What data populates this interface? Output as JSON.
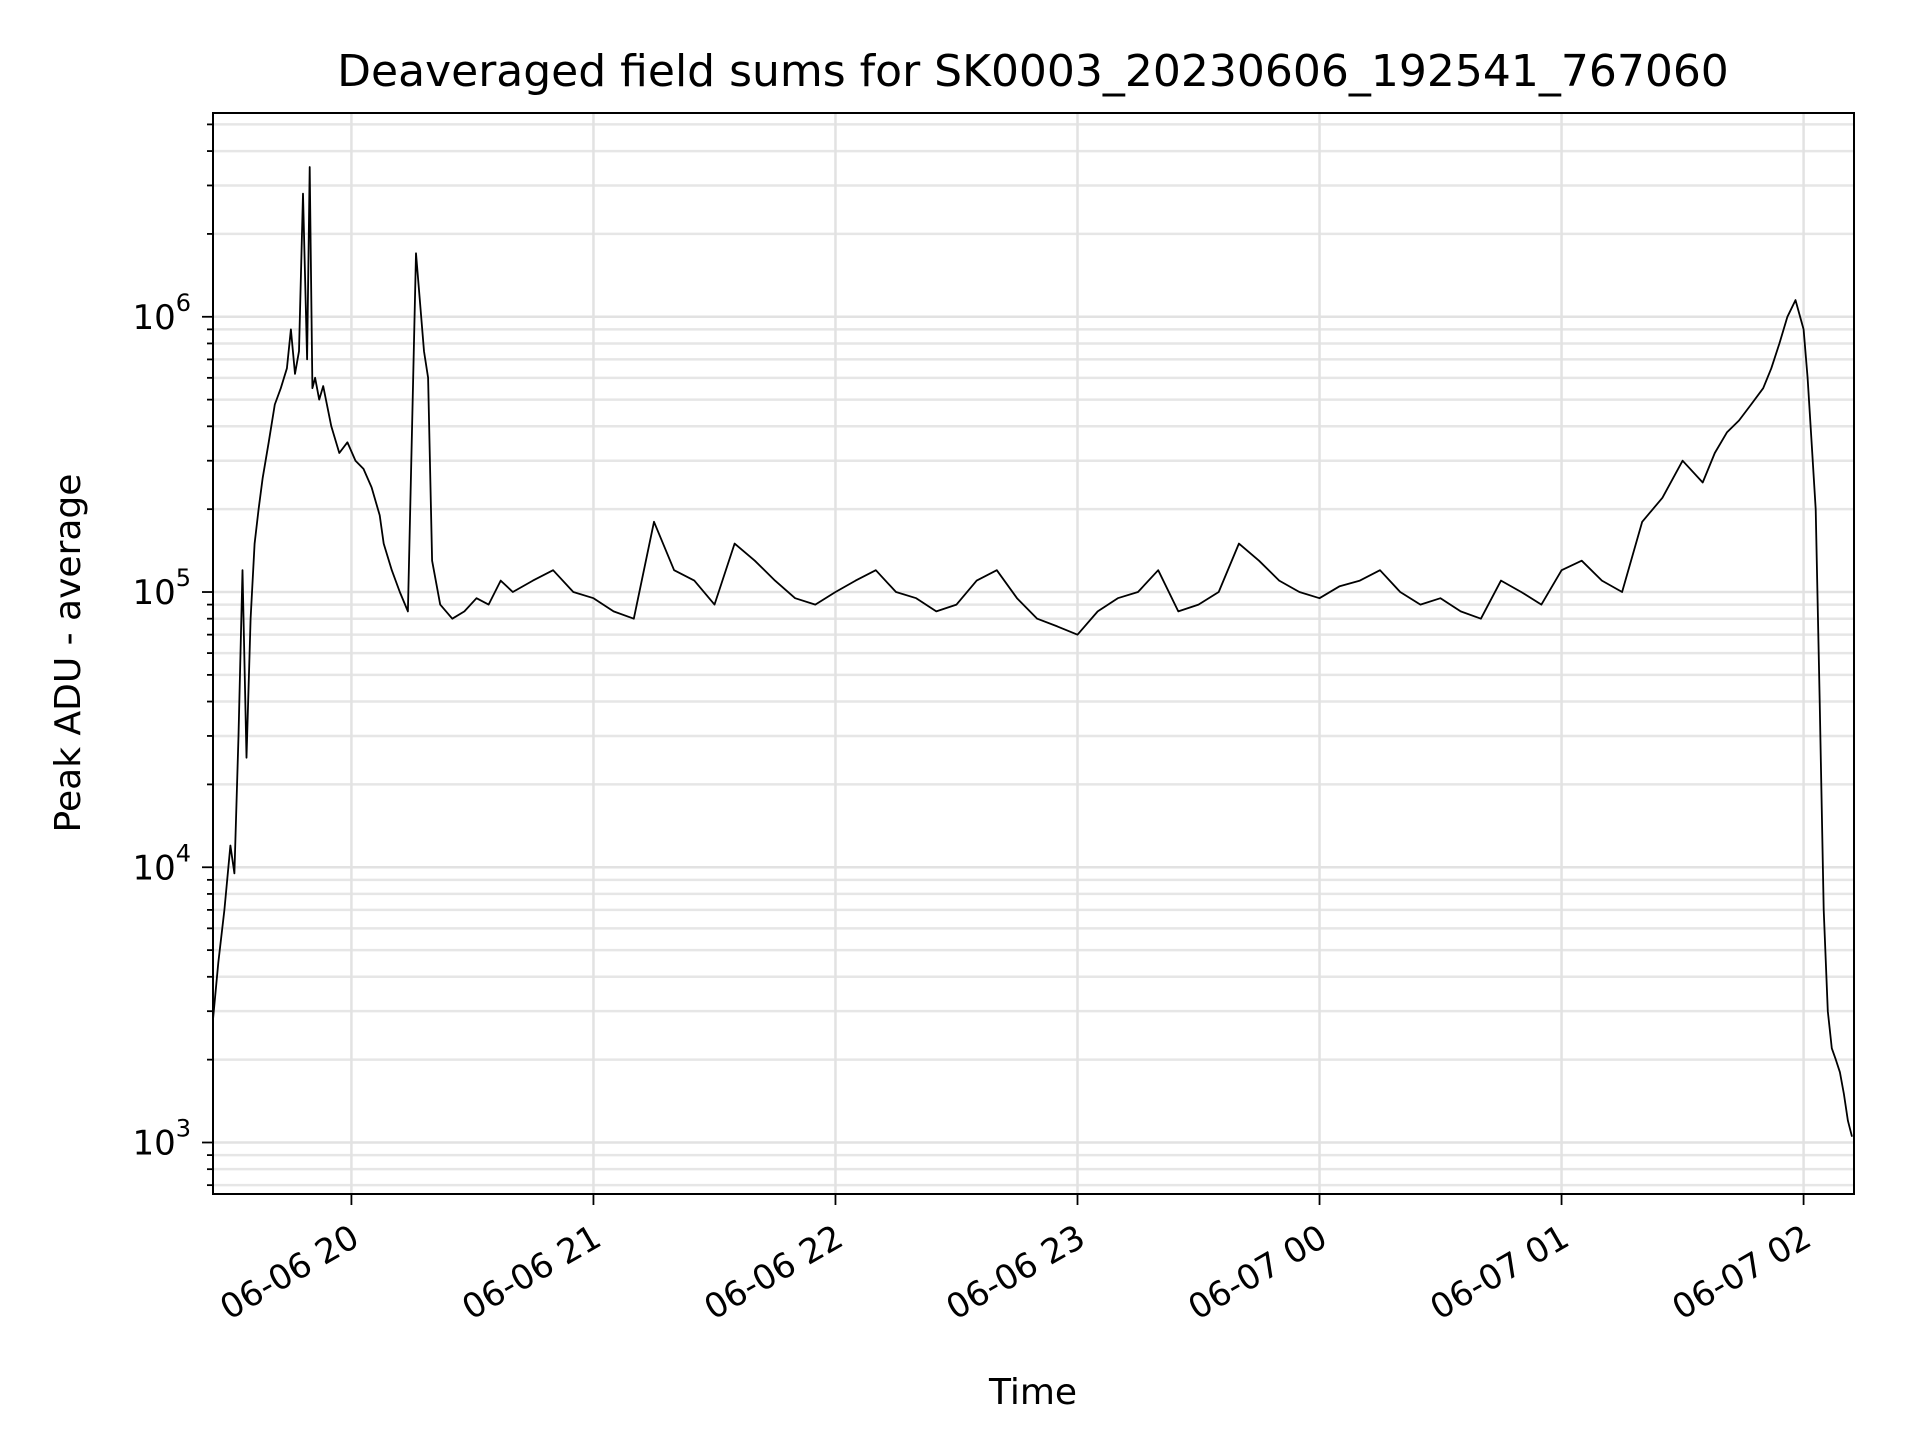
{
  "chart_data": {
    "type": "line",
    "title": "Deaveraged field sums for SK0003_20230606_192541_767060",
    "xlabel": "Time",
    "ylabel": "Peak ADU - average",
    "yscale": "log",
    "grid": true,
    "line_color": "#000000",
    "xlim": [
      "2023-06-06 19:25:41",
      "2023-06-07 02:12:30"
    ],
    "ylim": [
      650,
      5500000
    ],
    "x_ticks": [
      {
        "t": "2023-06-06 20:00",
        "label": "06-06 20"
      },
      {
        "t": "2023-06-06 21:00",
        "label": "06-06 21"
      },
      {
        "t": "2023-06-06 22:00",
        "label": "06-06 22"
      },
      {
        "t": "2023-06-06 23:00",
        "label": "06-06 23"
      },
      {
        "t": "2023-06-07 00:00",
        "label": "06-07 00"
      },
      {
        "t": "2023-06-07 01:00",
        "label": "06-07 01"
      },
      {
        "t": "2023-06-07 02:00",
        "label": "06-07 02"
      }
    ],
    "y_ticks": [
      {
        "value": 1000,
        "base": "10",
        "exp": "3"
      },
      {
        "value": 10000,
        "base": "10",
        "exp": "4"
      },
      {
        "value": 100000,
        "base": "10",
        "exp": "5"
      },
      {
        "value": 1000000,
        "base": "10",
        "exp": "6"
      }
    ],
    "series": [
      {
        "x": [
          "2023-06-06 19:25:41",
          "2023-06-06 19:27:00",
          "2023-06-06 19:28:30",
          "2023-06-06 19:30:00",
          "2023-06-06 19:31:00",
          "2023-06-06 19:32:00",
          "2023-06-06 19:33:00",
          "2023-06-06 19:34:00",
          "2023-06-06 19:35:00",
          "2023-06-06 19:36:00",
          "2023-06-06 19:37:00",
          "2023-06-06 19:38:00",
          "2023-06-06 19:39:30",
          "2023-06-06 19:41:00",
          "2023-06-06 19:42:30",
          "2023-06-06 19:44:00",
          "2023-06-06 19:45:00",
          "2023-06-06 19:46:00",
          "2023-06-06 19:47:00",
          "2023-06-06 19:48:00",
          "2023-06-06 19:49:00",
          "2023-06-06 19:49:40",
          "2023-06-06 19:50:20",
          "2023-06-06 19:51:00",
          "2023-06-06 19:52:00",
          "2023-06-06 19:53:00",
          "2023-06-06 19:55:00",
          "2023-06-06 19:57:00",
          "2023-06-06 19:59:00",
          "2023-06-06 20:01:00",
          "2023-06-06 20:03:00",
          "2023-06-06 20:05:00",
          "2023-06-06 20:07:00",
          "2023-06-06 20:08:00",
          "2023-06-06 20:10:00",
          "2023-06-06 20:12:00",
          "2023-06-06 20:14:00",
          "2023-06-06 20:16:00",
          "2023-06-06 20:18:00",
          "2023-06-06 20:19:00",
          "2023-06-06 20:20:00",
          "2023-06-06 20:22:00",
          "2023-06-06 20:25:00",
          "2023-06-06 20:28:00",
          "2023-06-06 20:31:00",
          "2023-06-06 20:34:00",
          "2023-06-06 20:37:00",
          "2023-06-06 20:40:00",
          "2023-06-06 20:45:00",
          "2023-06-06 20:50:00",
          "2023-06-06 20:55:00",
          "2023-06-06 21:00:00",
          "2023-06-06 21:05:00",
          "2023-06-06 21:10:00",
          "2023-06-06 21:15:00",
          "2023-06-06 21:20:00",
          "2023-06-06 21:25:00",
          "2023-06-06 21:30:00",
          "2023-06-06 21:35:00",
          "2023-06-06 21:40:00",
          "2023-06-06 21:45:00",
          "2023-06-06 21:50:00",
          "2023-06-06 21:55:00",
          "2023-06-06 22:00:00",
          "2023-06-06 22:05:00",
          "2023-06-06 22:10:00",
          "2023-06-06 22:15:00",
          "2023-06-06 22:20:00",
          "2023-06-06 22:25:00",
          "2023-06-06 22:30:00",
          "2023-06-06 22:35:00",
          "2023-06-06 22:40:00",
          "2023-06-06 22:45:00",
          "2023-06-06 22:50:00",
          "2023-06-06 22:55:00",
          "2023-06-06 23:00:00",
          "2023-06-06 23:05:00",
          "2023-06-06 23:10:00",
          "2023-06-06 23:15:00",
          "2023-06-06 23:20:00",
          "2023-06-06 23:25:00",
          "2023-06-06 23:30:00",
          "2023-06-06 23:35:00",
          "2023-06-06 23:40:00",
          "2023-06-06 23:45:00",
          "2023-06-06 23:50:00",
          "2023-06-06 23:55:00",
          "2023-06-07 00:00:00",
          "2023-06-07 00:05:00",
          "2023-06-07 00:10:00",
          "2023-06-07 00:15:00",
          "2023-06-07 00:20:00",
          "2023-06-07 00:25:00",
          "2023-06-07 00:30:00",
          "2023-06-07 00:35:00",
          "2023-06-07 00:40:00",
          "2023-06-07 00:45:00",
          "2023-06-07 00:50:00",
          "2023-06-07 00:55:00",
          "2023-06-07 01:00:00",
          "2023-06-07 01:05:00",
          "2023-06-07 01:10:00",
          "2023-06-07 01:15:00",
          "2023-06-07 01:20:00",
          "2023-06-07 01:25:00",
          "2023-06-07 01:30:00",
          "2023-06-07 01:35:00",
          "2023-06-07 01:38:00",
          "2023-06-07 01:41:00",
          "2023-06-07 01:44:00",
          "2023-06-07 01:47:00",
          "2023-06-07 01:50:00",
          "2023-06-07 01:52:00",
          "2023-06-07 01:54:00",
          "2023-06-07 01:56:00",
          "2023-06-07 01:58:00",
          "2023-06-07 02:00:00",
          "2023-06-07 02:01:00",
          "2023-06-07 02:02:00",
          "2023-06-07 02:03:00",
          "2023-06-07 02:04:00",
          "2023-06-07 02:05:00",
          "2023-06-07 02:06:00",
          "2023-06-07 02:07:00",
          "2023-06-07 02:08:00",
          "2023-06-07 02:09:00",
          "2023-06-07 02:10:00",
          "2023-06-07 02:11:00",
          "2023-06-07 02:12:00"
        ],
        "values": [
          2800,
          4500,
          7000,
          12000,
          9500,
          30000,
          120000,
          25000,
          80000,
          150000,
          200000,
          260000,
          350000,
          480000,
          550000,
          650000,
          900000,
          620000,
          750000,
          2800000,
          700000,
          3500000,
          550000,
          600000,
          500000,
          560000,
          400000,
          320000,
          350000,
          300000,
          280000,
          240000,
          190000,
          150000,
          120000,
          100000,
          85000,
          1700000,
          750000,
          600000,
          130000,
          90000,
          80000,
          85000,
          95000,
          90000,
          110000,
          100000,
          110000,
          120000,
          100000,
          95000,
          85000,
          80000,
          180000,
          120000,
          110000,
          90000,
          150000,
          130000,
          110000,
          95000,
          90000,
          100000,
          110000,
          120000,
          100000,
          95000,
          85000,
          90000,
          110000,
          120000,
          95000,
          80000,
          75000,
          70000,
          85000,
          95000,
          100000,
          120000,
          85000,
          90000,
          100000,
          150000,
          130000,
          110000,
          100000,
          95000,
          105000,
          110000,
          120000,
          100000,
          90000,
          95000,
          85000,
          80000,
          110000,
          100000,
          90000,
          120000,
          130000,
          110000,
          100000,
          180000,
          220000,
          300000,
          250000,
          320000,
          380000,
          420000,
          480000,
          550000,
          650000,
          800000,
          1000000,
          1150000,
          900000,
          600000,
          350000,
          200000,
          40000,
          7000,
          3000,
          2200,
          2000,
          1800,
          1500,
          1200,
          1050
        ]
      }
    ]
  }
}
